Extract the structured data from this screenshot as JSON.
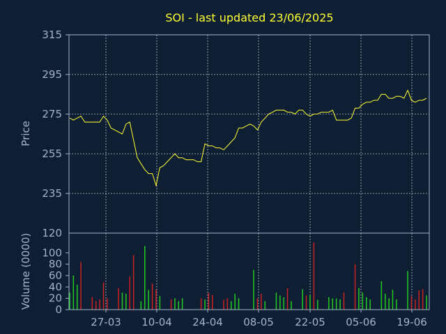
{
  "chart_data": {
    "type": "line",
    "title": "SOI - last updated 23/06/2025",
    "x_tick_labels": [
      "27-03",
      "10-04",
      "24-04",
      "08-05",
      "22-05",
      "05-06",
      "19-06"
    ],
    "price_panel": {
      "ylabel": "Price",
      "ylim": [
        235,
        315
      ],
      "y_ticks": [
        235,
        255,
        275,
        295,
        315
      ],
      "grid": true,
      "line_color": "#ffff33",
      "values": [
        273,
        272,
        273,
        274,
        271,
        271,
        271,
        271,
        271,
        274,
        272,
        268,
        267,
        266,
        265,
        270,
        271,
        262,
        253,
        250,
        247,
        245,
        245,
        239,
        248,
        249,
        251,
        253,
        255,
        253,
        253,
        252,
        252,
        252,
        251,
        251,
        260,
        259,
        259,
        258,
        258,
        257,
        259,
        261,
        263,
        268,
        268,
        269,
        270,
        269,
        267,
        271,
        273,
        275,
        276,
        277,
        277,
        277,
        276,
        276,
        275,
        277,
        277,
        275,
        274,
        275,
        275,
        276,
        276,
        276,
        277,
        272,
        272,
        272,
        272,
        273,
        278,
        278,
        280,
        281,
        281,
        282,
        282,
        285,
        285,
        283,
        283,
        284,
        284,
        283,
        287,
        282,
        281,
        282,
        282,
        283
      ]
    },
    "volume_panel": {
      "ylabel": "Volume (0000)",
      "ylim": [
        0,
        120
      ],
      "y_ticks": [
        0,
        20,
        40,
        60,
        80,
        100,
        120
      ],
      "up_color": "#22cc22",
      "down_color": "#cc2222",
      "bars": [
        {
          "v": 30,
          "up": true
        },
        {
          "v": 60,
          "up": true
        },
        {
          "v": 44,
          "up": true
        },
        {
          "v": 84,
          "up": false
        },
        {
          "v": 0,
          "up": true
        },
        {
          "v": 0,
          "up": true
        },
        {
          "v": 22,
          "up": false
        },
        {
          "v": 15,
          "up": false
        },
        {
          "v": 18,
          "up": false
        },
        {
          "v": 48,
          "up": false
        },
        {
          "v": 20,
          "up": false
        },
        {
          "v": 0,
          "up": true
        },
        {
          "v": 0,
          "up": true
        },
        {
          "v": 38,
          "up": false
        },
        {
          "v": 30,
          "up": true
        },
        {
          "v": 28,
          "up": true
        },
        {
          "v": 58,
          "up": false
        },
        {
          "v": 96,
          "up": false
        },
        {
          "v": 0,
          "up": true
        },
        {
          "v": 15,
          "up": true
        },
        {
          "v": 112,
          "up": true
        },
        {
          "v": 35,
          "up": true
        },
        {
          "v": 46,
          "up": false
        },
        {
          "v": 36,
          "up": false
        },
        {
          "v": 24,
          "up": true
        },
        {
          "v": 0,
          "up": true
        },
        {
          "v": 0,
          "up": true
        },
        {
          "v": 18,
          "up": false
        },
        {
          "v": 20,
          "up": true
        },
        {
          "v": 15,
          "up": true
        },
        {
          "v": 20,
          "up": true
        },
        {
          "v": 0,
          "up": true
        },
        {
          "v": 0,
          "up": true
        },
        {
          "v": 0,
          "up": true
        },
        {
          "v": 0,
          "up": true
        },
        {
          "v": 20,
          "up": false
        },
        {
          "v": 18,
          "up": true
        },
        {
          "v": 30,
          "up": false
        },
        {
          "v": 26,
          "up": false
        },
        {
          "v": 0,
          "up": true
        },
        {
          "v": 0,
          "up": true
        },
        {
          "v": 17,
          "up": false
        },
        {
          "v": 20,
          "up": false
        },
        {
          "v": 15,
          "up": true
        },
        {
          "v": 28,
          "up": true
        },
        {
          "v": 20,
          "up": true
        },
        {
          "v": 0,
          "up": true
        },
        {
          "v": 0,
          "up": true
        },
        {
          "v": 0,
          "up": true
        },
        {
          "v": 70,
          "up": true
        },
        {
          "v": 20,
          "up": false
        },
        {
          "v": 28,
          "up": false
        },
        {
          "v": 15,
          "up": true
        },
        {
          "v": 0,
          "up": true
        },
        {
          "v": 0,
          "up": true
        },
        {
          "v": 30,
          "up": true
        },
        {
          "v": 25,
          "up": true
        },
        {
          "v": 22,
          "up": true
        },
        {
          "v": 38,
          "up": false
        },
        {
          "v": 15,
          "up": true
        },
        {
          "v": 0,
          "up": true
        },
        {
          "v": 0,
          "up": true
        },
        {
          "v": 36,
          "up": true
        },
        {
          "v": 25,
          "up": false
        },
        {
          "v": 26,
          "up": true
        },
        {
          "v": 118,
          "up": false
        },
        {
          "v": 17,
          "up": true
        },
        {
          "v": 0,
          "up": true
        },
        {
          "v": 0,
          "up": true
        },
        {
          "v": 22,
          "up": true
        },
        {
          "v": 20,
          "up": true
        },
        {
          "v": 20,
          "up": true
        },
        {
          "v": 18,
          "up": true
        },
        {
          "v": 30,
          "up": false
        },
        {
          "v": 0,
          "up": true
        },
        {
          "v": 0,
          "up": true
        },
        {
          "v": 80,
          "up": false
        },
        {
          "v": 38,
          "up": true
        },
        {
          "v": 30,
          "up": true
        },
        {
          "v": 22,
          "up": true
        },
        {
          "v": 18,
          "up": true
        },
        {
          "v": 0,
          "up": true
        },
        {
          "v": 0,
          "up": true
        },
        {
          "v": 50,
          "up": true
        },
        {
          "v": 28,
          "up": true
        },
        {
          "v": 20,
          "up": true
        },
        {
          "v": 35,
          "up": true
        },
        {
          "v": 18,
          "up": true
        },
        {
          "v": 0,
          "up": true
        },
        {
          "v": 0,
          "up": true
        },
        {
          "v": 68,
          "up": true
        },
        {
          "v": 24,
          "up": false
        },
        {
          "v": 18,
          "up": false
        },
        {
          "v": 34,
          "up": false
        },
        {
          "v": 36,
          "up": false
        },
        {
          "v": 25,
          "up": true
        }
      ]
    }
  }
}
